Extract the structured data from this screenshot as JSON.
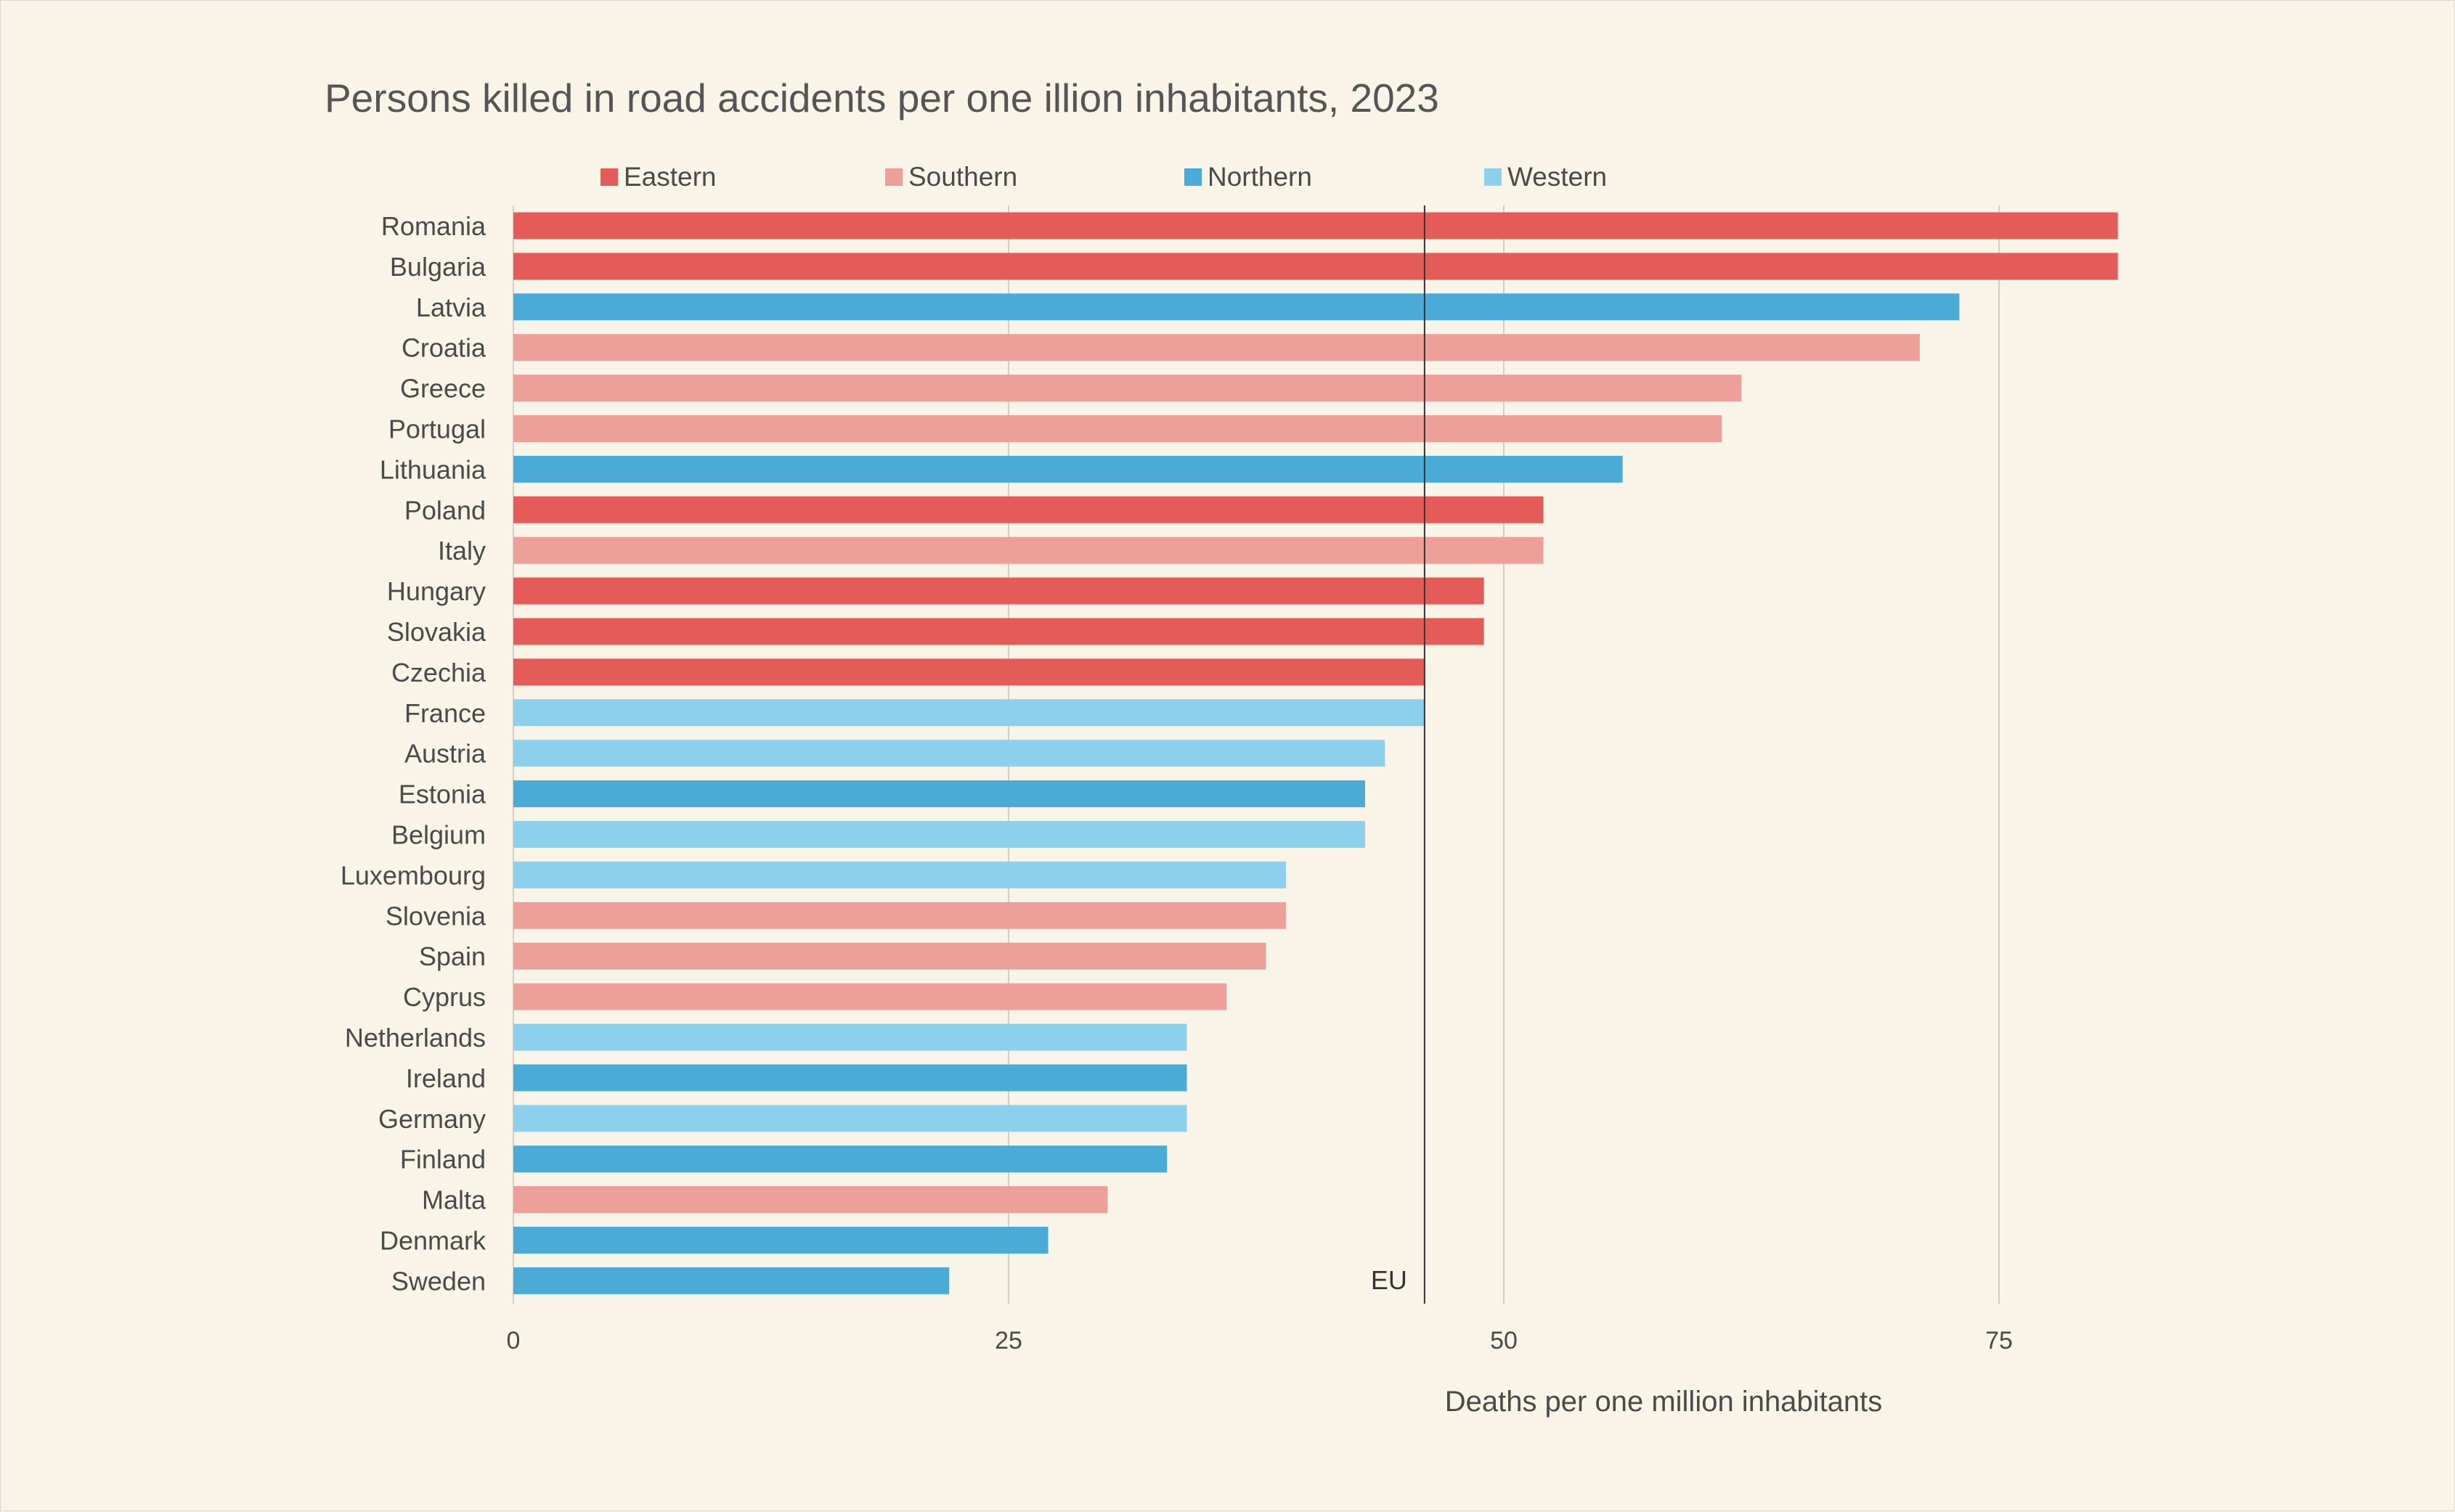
{
  "chart_data": {
    "type": "bar",
    "orientation": "horizontal",
    "title": "Persons killed in road accidents per one illion inhabitants, 2023",
    "xlabel": "Deaths per one million inhabitants",
    "ylabel": "",
    "xlim": [
      0,
      95
    ],
    "xticks": [
      0,
      25,
      50,
      75
    ],
    "grid": true,
    "legend_position": "top",
    "legend": [
      {
        "name": "Eastern",
        "color": "#e45b58"
      },
      {
        "name": "Southern",
        "color": "#ee9f9a"
      },
      {
        "name": "Northern",
        "color": "#4aabd7"
      },
      {
        "name": "Western",
        "color": "#8cd0ee"
      }
    ],
    "reference_line": {
      "label": "EU",
      "value": 46
    },
    "categories": [
      "Romania",
      "Bulgaria",
      "Latvia",
      "Croatia",
      "Greece",
      "Portugal",
      "Lithuania",
      "Poland",
      "Italy",
      "Hungary",
      "Slovakia",
      "Czechia",
      "France",
      "Austria",
      "Estonia",
      "Belgium",
      "Luxembourg",
      "Slovenia",
      "Spain",
      "Cyprus",
      "Netherlands",
      "Ireland",
      "Germany",
      "Finland",
      "Malta",
      "Denmark",
      "Sweden"
    ],
    "values": [
      81,
      81,
      73,
      71,
      62,
      61,
      56,
      52,
      52,
      49,
      49,
      46,
      46,
      44,
      43,
      43,
      39,
      39,
      38,
      36,
      34,
      34,
      34,
      33,
      30,
      27,
      22
    ],
    "groups": [
      "Eastern",
      "Eastern",
      "Northern",
      "Southern",
      "Southern",
      "Southern",
      "Northern",
      "Eastern",
      "Southern",
      "Eastern",
      "Eastern",
      "Eastern",
      "Western",
      "Western",
      "Northern",
      "Western",
      "Western",
      "Southern",
      "Southern",
      "Southern",
      "Western",
      "Northern",
      "Western",
      "Northern",
      "Southern",
      "Northern",
      "Northern"
    ]
  }
}
